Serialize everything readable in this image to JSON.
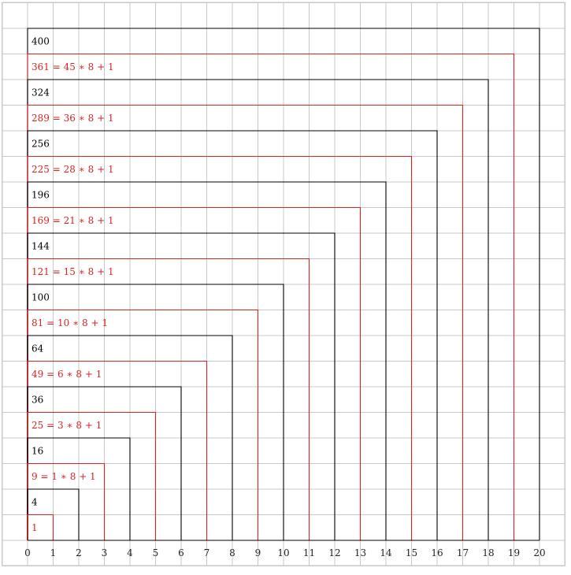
{
  "colors": {
    "grid": "#c8c8c8",
    "black": "#000000",
    "red": "#dd2222",
    "text": "#222222"
  },
  "x_ticks": [
    "0",
    "1",
    "2",
    "3",
    "4",
    "5",
    "6",
    "7",
    "8",
    "9",
    "10",
    "11",
    "12",
    "13",
    "14",
    "15",
    "16",
    "17",
    "18",
    "19",
    "20"
  ],
  "squares": [
    {
      "n": 1,
      "color": "red",
      "label": "1"
    },
    {
      "n": 2,
      "color": "black",
      "label": "4"
    },
    {
      "n": 3,
      "color": "red",
      "label": "9 = 1 ∗ 8 + 1"
    },
    {
      "n": 4,
      "color": "black",
      "label": "16"
    },
    {
      "n": 5,
      "color": "red",
      "label": "25 = 3 ∗ 8 + 1"
    },
    {
      "n": 6,
      "color": "black",
      "label": "36"
    },
    {
      "n": 7,
      "color": "red",
      "label": "49 = 6 ∗ 8 + 1"
    },
    {
      "n": 8,
      "color": "black",
      "label": "64"
    },
    {
      "n": 9,
      "color": "red",
      "label": "81 = 10 ∗ 8 + 1"
    },
    {
      "n": 10,
      "color": "black",
      "label": "100"
    },
    {
      "n": 11,
      "color": "red",
      "label": "121 = 15 ∗ 8 + 1"
    },
    {
      "n": 12,
      "color": "black",
      "label": "144"
    },
    {
      "n": 13,
      "color": "red",
      "label": "169 = 21 ∗ 8 + 1"
    },
    {
      "n": 14,
      "color": "black",
      "label": "196"
    },
    {
      "n": 15,
      "color": "red",
      "label": "225 = 28 ∗ 8 + 1"
    },
    {
      "n": 16,
      "color": "black",
      "label": "256"
    },
    {
      "n": 17,
      "color": "red",
      "label": "289 = 36 ∗ 8 + 1"
    },
    {
      "n": 18,
      "color": "black",
      "label": "324"
    },
    {
      "n": 19,
      "color": "red",
      "label": "361 = 45 ∗ 8 + 1"
    },
    {
      "n": 20,
      "color": "black",
      "label": "400"
    }
  ]
}
